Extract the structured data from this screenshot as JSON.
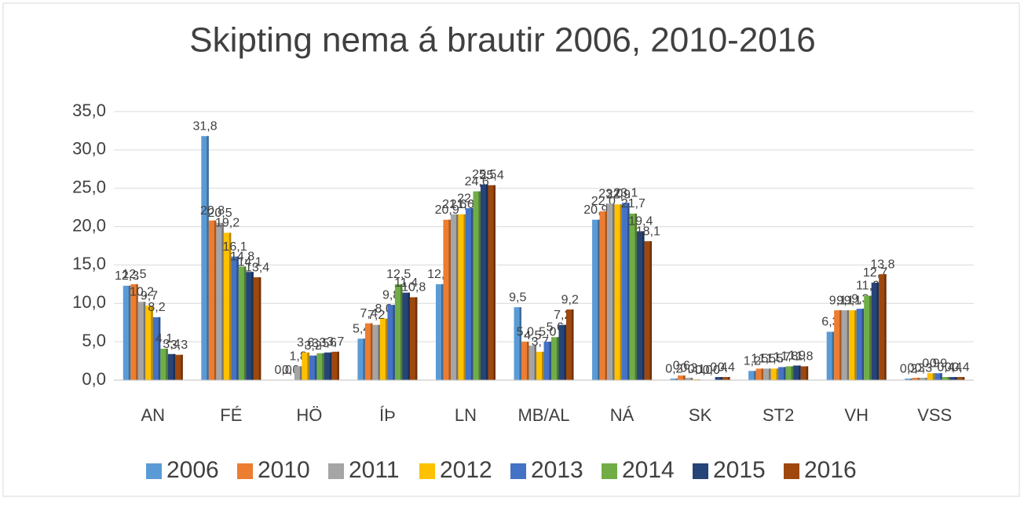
{
  "chart_data": {
    "type": "bar",
    "title": "Skipting nema á brautir 2006, 2010-2016",
    "categories": [
      "AN",
      "FÉ",
      "HÖ",
      "ÍÞ",
      "LN",
      "MB/AL",
      "NÁ",
      "SK",
      "ST2",
      "VH",
      "VSS"
    ],
    "series": [
      {
        "name": "2006",
        "color": "#5b9bd5",
        "values": [
          12.3,
          31.8,
          0.0,
          5.4,
          12.5,
          9.5,
          20.9,
          0.2,
          1.2,
          6.3,
          0.2
        ],
        "value_labels": [
          "12,3",
          "31,8",
          "0,0",
          "5,4",
          "12,5",
          "9,5",
          "20,9",
          "0,2",
          "1,2",
          "6,3",
          "0,2"
        ]
      },
      {
        "name": "2010",
        "color": "#ed7d31",
        "values": [
          12.5,
          20.8,
          0.0,
          7.4,
          20.9,
          5.0,
          22.0,
          0.6,
          1.5,
          9.1,
          0.3
        ],
        "value_labels": [
          "12,5",
          "20,8",
          "0,0",
          "7,4",
          "20,9",
          "5,0",
          "22,0",
          "0,6",
          "1,5",
          "9,1",
          "0,3"
        ]
      },
      {
        "name": "2011",
        "color": "#a5a5a5",
        "values": [
          10.2,
          20.5,
          1.8,
          7.2,
          21.6,
          4.5,
          23.0,
          0.3,
          1.5,
          9.1,
          0.3
        ],
        "value_labels": [
          "10,2",
          "20,5",
          "1,8",
          "7,2",
          "21,6",
          "4,5",
          "23,0",
          "0,3",
          "1,5",
          "9,1",
          "0,3"
        ]
      },
      {
        "name": "2012",
        "color": "#ffc000",
        "values": [
          9.7,
          19.2,
          3.6,
          8.0,
          21.6,
          3.7,
          22.9,
          0.1,
          1.5,
          9.1,
          0.9
        ],
        "value_labels": [
          "9,7",
          "19,2",
          "3,6",
          "8,0",
          "21,6",
          "3,7",
          "22,9",
          "0,1",
          "1,5",
          "9,1",
          "0,9"
        ]
      },
      {
        "name": "2013",
        "color": "#4472c4",
        "values": [
          8.2,
          16.1,
          3.2,
          9.8,
          22.4,
          5.0,
          23.1,
          0.0,
          1.7,
          9.3,
          0.9
        ],
        "value_labels": [
          "8,2",
          "16,1",
          "3,2",
          "9,8",
          "22,4",
          "5,0",
          "23,1",
          "0,0",
          "1,7",
          "9,3",
          "0,9"
        ]
      },
      {
        "name": "2014",
        "color": "#70ad47",
        "values": [
          4.1,
          14.8,
          3.5,
          12.5,
          24.6,
          5.6,
          21.7,
          0.0,
          1.8,
          11.0,
          0.4
        ],
        "value_labels": [
          "4,1",
          "14,8",
          "3,5",
          "12,5",
          "24,6",
          "5,6",
          "21,7",
          "0,0",
          "1,8",
          "11,0",
          "0,4"
        ]
      },
      {
        "name": "2015",
        "color": "#264478",
        "values": [
          3.4,
          14.1,
          3.6,
          11.4,
          25.5,
          7.2,
          19.4,
          0.4,
          1.9,
          12.7,
          0.4
        ],
        "value_labels": [
          "3,4",
          "14,1",
          "3,6",
          "11,4",
          "25,5",
          "7,2",
          "19,4",
          "0,4",
          "1,9",
          "12,7",
          "0,4"
        ]
      },
      {
        "name": "2016",
        "color": "#9e480e",
        "values": [
          3.3,
          13.4,
          3.7,
          10.8,
          25.4,
          9.2,
          18.1,
          0.4,
          1.8,
          13.8,
          0.4
        ],
        "value_labels": [
          "3,3",
          "13,4",
          "3,7",
          "10,8",
          "25,4",
          "9,2",
          "18,1",
          "0,4",
          "1,8",
          "13,8",
          "0,4"
        ]
      }
    ],
    "ylim": [
      0,
      35
    ],
    "yticks": [
      {
        "value": 0,
        "label": "0,0"
      },
      {
        "value": 5,
        "label": "5,0"
      },
      {
        "value": 10,
        "label": "10,0"
      },
      {
        "value": 15,
        "label": "15,0"
      },
      {
        "value": 20,
        "label": "20,0"
      },
      {
        "value": 25,
        "label": "25,0"
      },
      {
        "value": 30,
        "label": "30,0"
      },
      {
        "value": 35,
        "label": "35,0"
      }
    ],
    "grid": true,
    "legend": "bottom"
  }
}
